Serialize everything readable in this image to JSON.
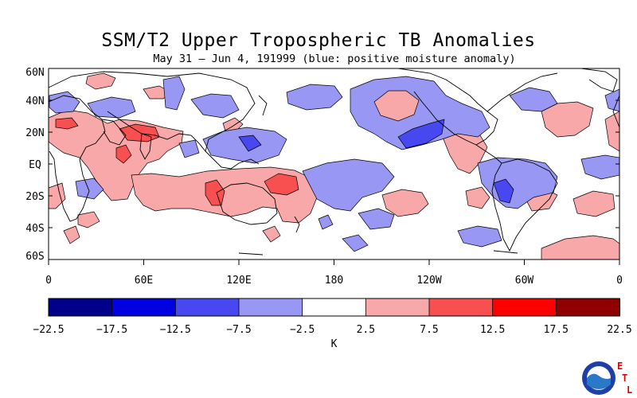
{
  "title": "SSM/T2 Upper Tropospheric TB Anomalies",
  "subtitle": "May 31 – Jun 4, 191999 (blue: positive moisture anomaly)",
  "map": {
    "lat_labels": [
      "60N",
      "40N",
      "20N",
      "EQ",
      "20S",
      "40S",
      "60S"
    ],
    "lon_labels": [
      "0",
      "60E",
      "120E",
      "180",
      "120W",
      "60W",
      "0"
    ]
  },
  "colorbar": {
    "ticks": [
      "-22.5",
      "-17.5",
      "-12.5",
      "-7.5",
      "-2.5",
      "2.5",
      "7.5",
      "12.5",
      "17.5",
      "22.5"
    ],
    "colors": [
      "#00008b",
      "#0000e0",
      "#4848f0",
      "#9898f4",
      "#ffffff",
      "#f8a8a8",
      "#f85050",
      "#ff0000",
      "#900000"
    ],
    "unit": "K"
  },
  "logo": {
    "org_text": "NOAA",
    "letters": [
      "E",
      "T",
      "L"
    ],
    "letter_color": "#e00000",
    "icon": "noaa-emblem-icon"
  },
  "palette": {
    "pos1": "#f8a8a8",
    "pos2": "#f85050",
    "neg1": "#9898f4",
    "neg2": "#4848f0"
  }
}
